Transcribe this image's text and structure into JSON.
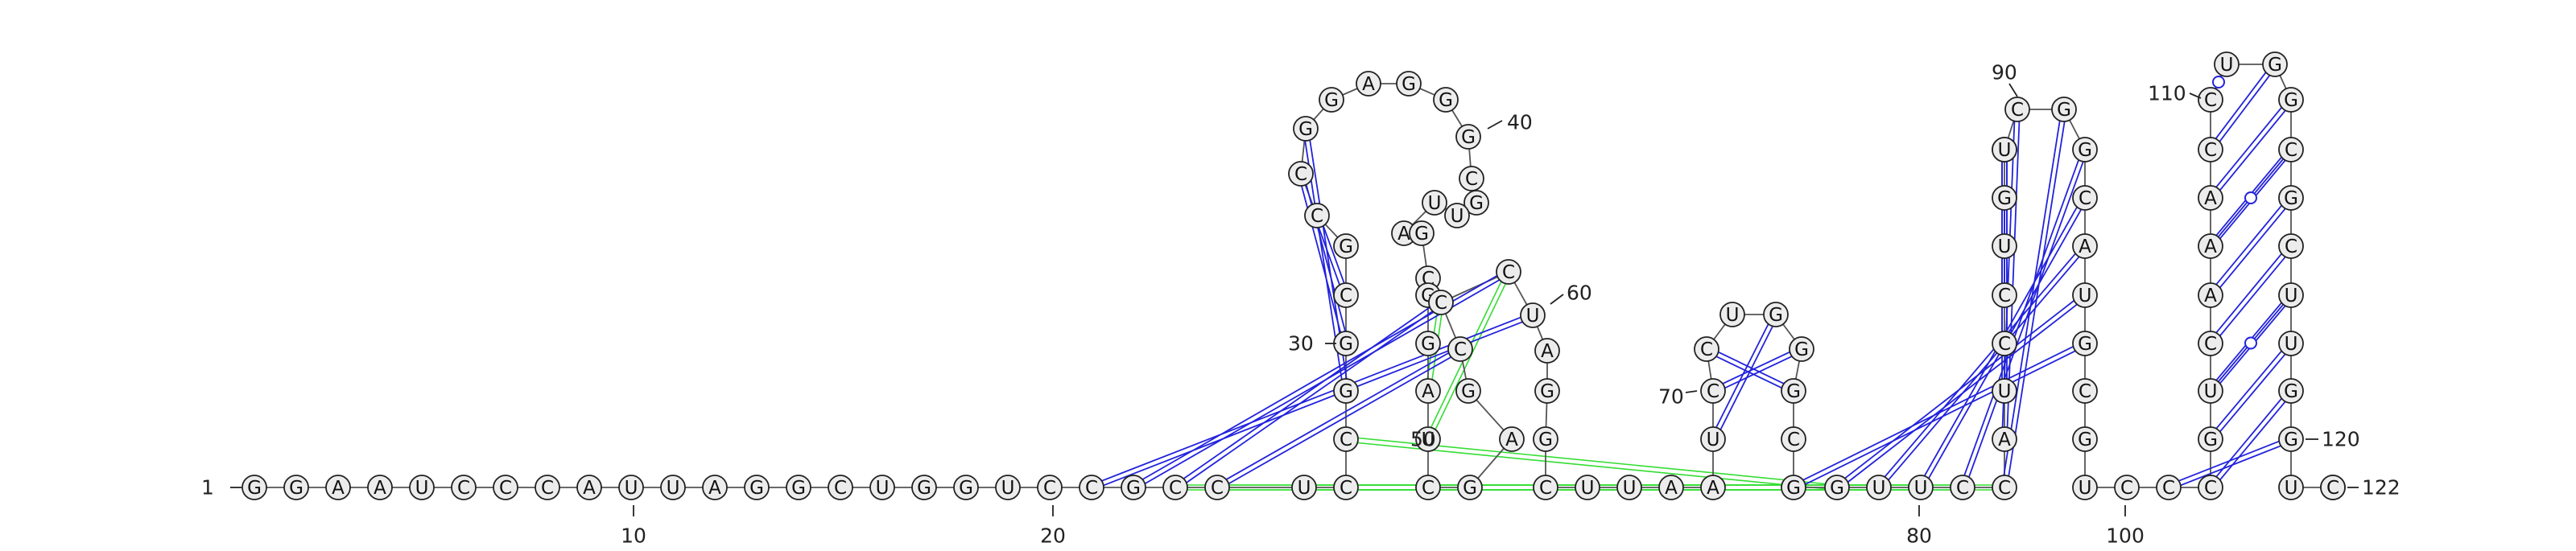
{
  "diagram": {
    "type": "rna-secondary-structure",
    "sequence": "GGAAUCCCAUUAGGCUGGUCCGCCUCCGGCGCCGGAGGGCGUUAGCGGAUCGAGCCCUAGGCUUAAUCCUGGGCGGUUCCAUCCUGGUCGGCAUGCGUCCCGUCAAACCUGGCGCUUGGUGC",
    "length": 122,
    "position_labels": [
      "1",
      "30",
      "40",
      "50",
      "60",
      "70",
      "90",
      "110",
      "120",
      "122"
    ],
    "axis_tick_labels": [
      "10",
      "20",
      "80",
      "100"
    ],
    "canonical_pairs": [
      [
        21,
        58
      ],
      [
        22,
        57
      ],
      [
        23,
        56
      ],
      [
        24,
        55
      ],
      [
        28,
        34
      ],
      [
        29,
        33
      ],
      [
        30,
        32
      ],
      [
        67,
        71
      ],
      [
        68,
        72
      ],
      [
        69,
        73
      ],
      [
        75,
        95
      ],
      [
        76,
        94
      ],
      [
        77,
        93
      ],
      [
        78,
        92
      ],
      [
        79,
        91
      ],
      [
        80,
        90
      ],
      [
        81,
        89
      ],
      [
        82,
        88
      ],
      [
        83,
        87
      ],
      [
        100,
        119
      ],
      [
        101,
        118
      ],
      [
        102,
        117
      ],
      [
        103,
        116
      ],
      [
        104,
        115
      ],
      [
        105,
        114
      ],
      [
        106,
        113
      ],
      [
        107,
        112
      ],
      [
        108,
        111
      ]
    ],
    "wobble_pairs": [
      [
        84,
        86
      ],
      [
        109,
        110
      ],
      [
        106,
        113
      ],
      [
        103,
        116
      ]
    ],
    "tertiary_interactions": [
      [
        23,
        80
      ],
      [
        24,
        79
      ],
      [
        25,
        78
      ],
      [
        26,
        77
      ],
      [
        27,
        76
      ],
      [
        49,
        56
      ],
      [
        50,
        57
      ]
    ],
    "colors": {
      "nucleotide_fill": "#ececec",
      "nucleotide_stroke": "#222222",
      "backbone": "#555555",
      "base_pair": "#2222dd",
      "tertiary": "#33dd33"
    }
  }
}
